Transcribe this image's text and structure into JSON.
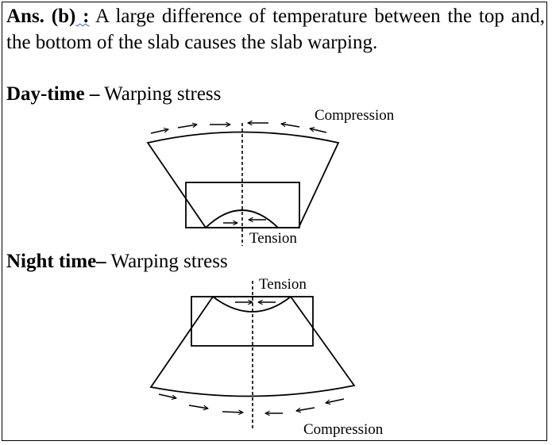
{
  "answer": {
    "label": "Ans. (b)",
    "separator": " :",
    "text": " A large difference of temperature between the top and, the bottom of the slab causes the slab warping."
  },
  "day": {
    "title_bold": "Day-time –",
    "title_rest": " Warping stress",
    "compression_label": "Compression",
    "tension_label": "Tension"
  },
  "night": {
    "title_bold": "Night time–",
    "title_rest": " Warping stress",
    "tension_label": "Tension",
    "compression_label": "Compression"
  }
}
